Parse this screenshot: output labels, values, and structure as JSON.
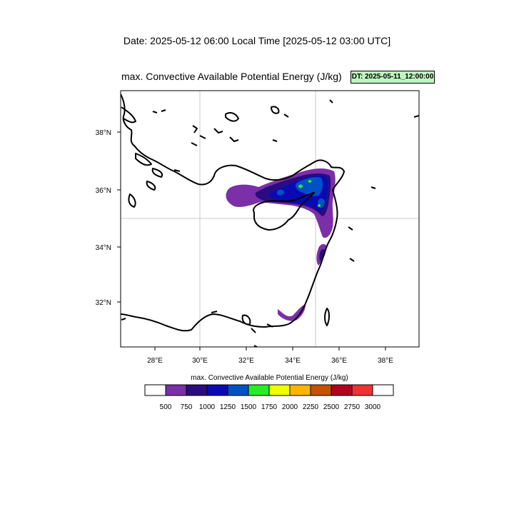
{
  "header": {
    "date_line": "Date: 2025-05-12  06:00 Local Time [2025-05-12  03:00 UTC]",
    "field_title": "max. Convective Available Potential Energy   (J/kg)",
    "dt_badge": "DT: 2025-05-11_12:00:00"
  },
  "map": {
    "lon_range": [
      26.6,
      39.4
    ],
    "lat_range": [
      30.4,
      39.5
    ],
    "lon_ticks": [
      "28°E",
      "30°E",
      "32°E",
      "34°E",
      "36°E",
      "38°E"
    ],
    "lat_ticks": [
      "38°N",
      "36°N",
      "34°N",
      "32°N"
    ],
    "grid_lines": {
      "lon": 30,
      "lat": 35
    },
    "colors": {
      "coastline": "#000000",
      "grid": "#c8c8c8"
    }
  },
  "colorbar": {
    "title": "max. Convective Available Potential Energy  (J/kg)",
    "levels": [
      "500",
      "750",
      "1000",
      "1250",
      "1500",
      "1750",
      "2000",
      "2250",
      "2500",
      "2750",
      "3000"
    ],
    "colors": [
      "#ffffff",
      "#7b2fa8",
      "#2a0c80",
      "#0a0ab4",
      "#0050c8",
      "#22ee22",
      "#eeff00",
      "#ffb400",
      "#c85000",
      "#b4001e",
      "#f03232",
      "#ffffff"
    ]
  }
}
